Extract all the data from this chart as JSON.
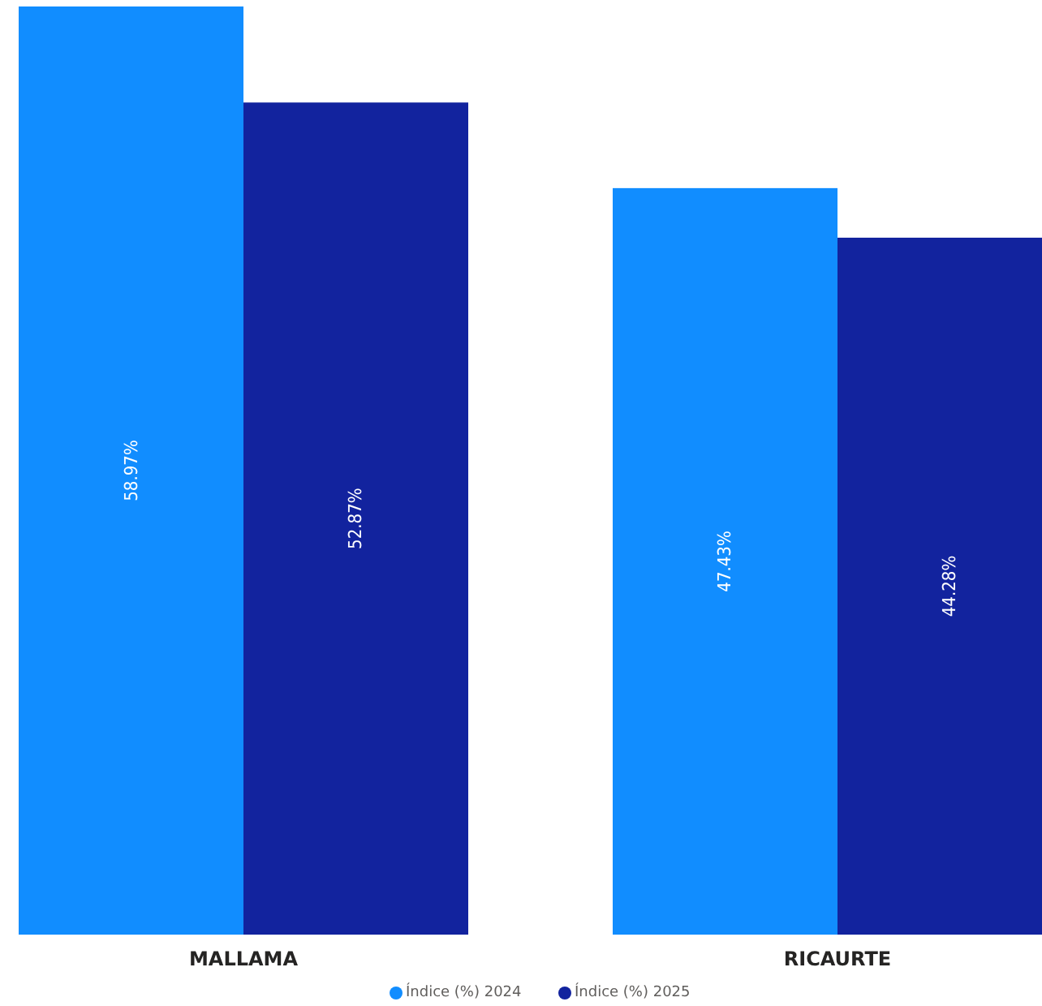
{
  "chart_data": {
    "type": "bar",
    "categories": [
      "MALLAMA",
      "RICAURTE"
    ],
    "series": [
      {
        "name": "Índice (%) 2024",
        "color": "#118dff",
        "values": [
          58.97,
          47.43
        ],
        "value_labels": [
          "58.97%",
          "47.43%"
        ]
      },
      {
        "name": "Índice (%) 2025",
        "color": "#12239e",
        "values": [
          52.87,
          44.28
        ],
        "value_labels": [
          "52.87%",
          "44.28%"
        ]
      }
    ],
    "legend": "bottom"
  }
}
